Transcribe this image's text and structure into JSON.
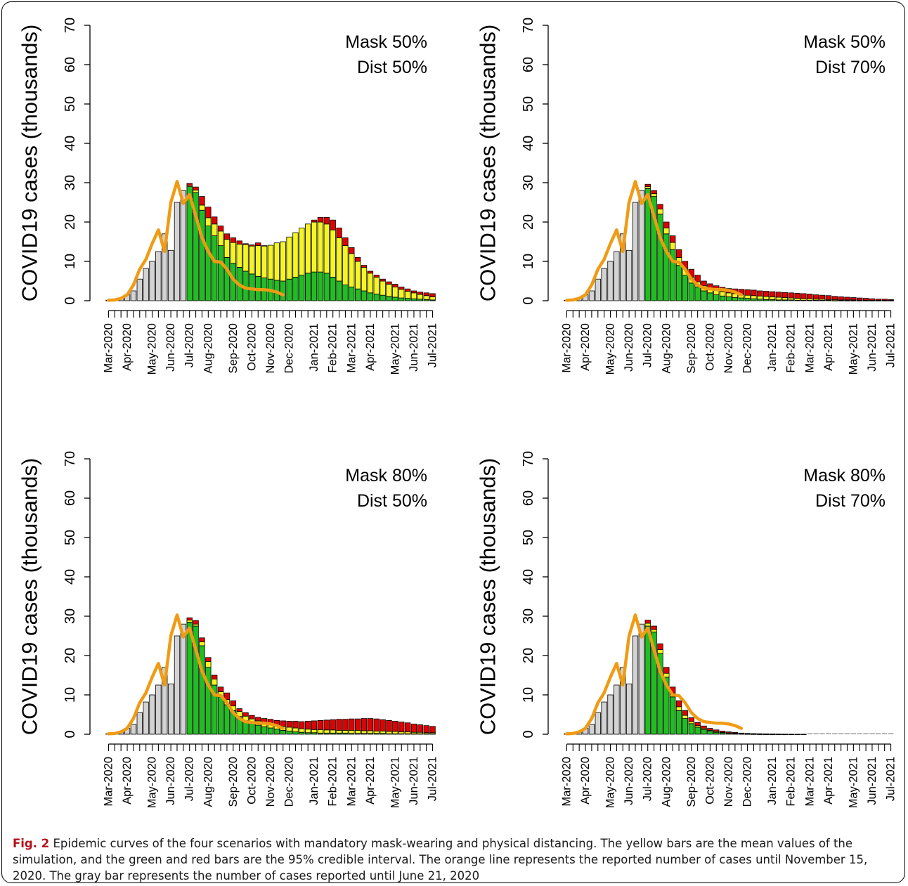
{
  "colors": {
    "gray": "#d3d3d3",
    "green": "#1fbf1f",
    "yellow": "#f5f523",
    "red": "#e00000",
    "orange": "#f09b14"
  },
  "caption": {
    "label": "Fig. 2",
    "text": " Epidemic curves of the four scenarios with mandatory mask-wearing and physical distancing. The yellow bars are the mean values of the simulation, and the green and red bars are the 95% credible interval. The orange line represents the reported number of cases until November 15, 2020. The gray bar represents the number of cases reported until June 21, 2020"
  },
  "chart_data": [
    {
      "type": "bar",
      "title": [
        "Mask 50%",
        "Dist 50%"
      ],
      "ylabel": "COVID19 cases (thousands)",
      "ylim": [
        0,
        70
      ],
      "yticks": [
        0,
        10,
        20,
        30,
        40,
        50,
        60,
        70
      ],
      "x_tick_labels": [
        "Mar-2020",
        "Apr-2020",
        "May-2020",
        "Jun-2020",
        "Jul-2020",
        "Aug-2020",
        "Sep-2020",
        "Oct-2020",
        "Nov-2020",
        "Dec-2020",
        "Jan-2021",
        "Feb-2021",
        "Mar-2021",
        "Apr-2021",
        "May-2021",
        "Jun-2021",
        "Jul-2021"
      ],
      "reported_gray": [
        0.1,
        0.2,
        0.6,
        1.5,
        2.5,
        5.5,
        8.2,
        10.0,
        12.5,
        17.0,
        12.8,
        25.0,
        28.0
      ],
      "sim_lower_green": [
        29.0,
        27.5,
        23.0,
        19.0,
        16.5,
        14.0,
        11.0,
        9.5,
        8.5,
        7.5,
        6.8,
        6.2,
        5.8,
        5.5,
        5.2,
        5.0,
        5.5,
        6.0,
        6.5,
        7.0,
        7.3,
        7.3,
        7.0,
        6.0,
        5.0,
        4.0,
        3.5,
        3.0,
        2.5,
        2.0,
        1.7,
        1.4,
        1.1,
        0.9,
        0.7,
        0.6,
        0.5,
        0.4,
        0.3,
        0.2
      ],
      "sim_mean_yellow": [
        29.3,
        28.1,
        24.3,
        21.1,
        19.5,
        17.7,
        15.6,
        14.8,
        14.4,
        14.3,
        13.9,
        14.0,
        13.9,
        14.1,
        14.7,
        15.0,
        16.2,
        17.3,
        18.5,
        19.5,
        20.0,
        20.0,
        19.5,
        18.0,
        16.0,
        14.0,
        12.0,
        10.0,
        8.5,
        7.0,
        6.0,
        5.0,
        4.2,
        3.5,
        2.9,
        2.4,
        2.0,
        1.6,
        1.3,
        1.0
      ],
      "sim_upper_red": [
        29.8,
        28.9,
        26.5,
        23.8,
        21.3,
        19.0,
        17.0,
        16.0,
        15.2,
        14.5,
        14.2,
        14.7,
        14.0,
        13.9,
        14.5,
        14.0,
        15.3,
        16.2,
        18.0,
        19.5,
        20.5,
        21.2,
        21.2,
        20.5,
        18.5,
        16.0,
        13.5,
        11.0,
        9.0,
        7.5,
        6.5,
        5.5,
        4.8,
        4.2,
        3.5,
        3.0,
        2.5,
        2.2,
        2.0,
        1.8
      ],
      "reported_line": [
        0.1,
        0.2,
        0.6,
        1.5,
        4.0,
        8.0,
        10.5,
        14.5,
        18.0,
        12.5,
        25.0,
        30.3,
        24.7,
        27.0,
        21.5,
        16.0,
        12.5,
        10.0,
        9.8,
        8.0,
        5.5,
        4.0,
        3.2,
        3.0,
        2.8,
        2.8,
        2.6,
        2.2,
        1.5
      ]
    },
    {
      "type": "bar",
      "title": [
        "Mask 50%",
        "Dist 70%"
      ],
      "ylabel": "COVID19 cases (thousands)",
      "ylim": [
        0,
        70
      ],
      "yticks": [
        0,
        10,
        20,
        30,
        40,
        50,
        60,
        70
      ],
      "x_tick_labels": [
        "Mar-2020",
        "Apr-2020",
        "May-2020",
        "Jun-2020",
        "Jul-2020",
        "Aug-2020",
        "Sep-2020",
        "Oct-2020",
        "Nov-2020",
        "Dec-2020",
        "Jan-2021",
        "Feb-2021",
        "Mar-2021",
        "Apr-2021",
        "May-2021",
        "Jun-2021",
        "Jul-2021"
      ],
      "reported_gray": [
        0.1,
        0.2,
        0.6,
        1.5,
        2.5,
        5.5,
        8.2,
        10.0,
        12.5,
        17.0,
        12.8,
        25.0,
        28.0
      ],
      "sim_lower_green": [
        28.5,
        26.5,
        22.0,
        17.0,
        13.0,
        9.0,
        6.5,
        4.5,
        3.5,
        2.5,
        2.0,
        1.5,
        1.2,
        1.0,
        0.8,
        0.7,
        0.6,
        0.5,
        0.4,
        0.3,
        0.3,
        0.2,
        0.2,
        0.2,
        0.1,
        0.1,
        0.1,
        0.1,
        0.1,
        0.1,
        0.05,
        0.05,
        0.05,
        0.05,
        0.05,
        0.05,
        0.05,
        0.05,
        0.05,
        0.05
      ],
      "sim_mean_yellow": [
        29.0,
        27.2,
        23.3,
        18.5,
        14.8,
        11.0,
        8.2,
        6.0,
        4.8,
        3.8,
        3.2,
        2.7,
        2.3,
        2.0,
        1.8,
        1.6,
        1.4,
        1.3,
        1.2,
        1.1,
        1.0,
        0.9,
        0.8,
        0.7,
        0.6,
        0.5,
        0.5,
        0.4,
        0.4,
        0.3,
        0.3,
        0.2,
        0.2,
        0.2,
        0.15,
        0.1,
        0.1,
        0.1,
        0.1,
        0.1
      ],
      "sim_upper_red": [
        29.6,
        28.0,
        24.5,
        20.0,
        16.5,
        13.0,
        10.0,
        8.0,
        6.5,
        5.0,
        4.3,
        3.8,
        3.4,
        3.1,
        3.0,
        2.9,
        2.8,
        2.7,
        2.5,
        2.4,
        2.3,
        2.2,
        2.1,
        2.0,
        1.9,
        1.8,
        1.7,
        1.5,
        1.4,
        1.3,
        1.1,
        1.0,
        0.9,
        0.8,
        0.7,
        0.6,
        0.5,
        0.4,
        0.4,
        0.3
      ],
      "reported_line": [
        0.1,
        0.2,
        0.6,
        1.5,
        4.0,
        8.0,
        10.5,
        14.5,
        18.0,
        12.5,
        25.0,
        30.3,
        24.7,
        27.0,
        21.5,
        16.0,
        12.5,
        10.0,
        9.8,
        8.0,
        5.5,
        4.0,
        3.2,
        3.0,
        2.8,
        2.8,
        2.6,
        2.2,
        1.5
      ]
    },
    {
      "type": "bar",
      "title": [
        "Mask 80%",
        "Dist 50%"
      ],
      "ylabel": "COVID19 cases (thousands)",
      "ylim": [
        0,
        70
      ],
      "yticks": [
        0,
        10,
        20,
        30,
        40,
        50,
        60,
        70
      ],
      "x_tick_labels": [
        "Mar-2020",
        "Apr-2020",
        "May-2020",
        "Jun-2020",
        "Jul-2020",
        "Aug-2020",
        "Sep-2020",
        "Oct-2020",
        "Nov-2020",
        "Dec-2020",
        "Jan-2021",
        "Feb-2021",
        "Mar-2021",
        "Apr-2021",
        "May-2021",
        "Jun-2021",
        "Jul-2021"
      ],
      "reported_gray": [
        0.1,
        0.2,
        0.6,
        1.5,
        2.5,
        5.5,
        8.2,
        10.0,
        12.5,
        17.0,
        12.8,
        25.0,
        28.0
      ],
      "sim_lower_green": [
        28.5,
        27.5,
        22.5,
        17.0,
        12.5,
        9.5,
        7.5,
        6.0,
        4.5,
        3.5,
        2.8,
        2.3,
        1.9,
        1.6,
        1.3,
        1.0,
        0.8,
        0.6,
        0.5,
        0.4,
        0.4,
        0.3,
        0.3,
        0.3,
        0.3,
        0.3,
        0.2,
        0.2,
        0.2,
        0.2,
        0.2,
        0.2,
        0.1,
        0.1,
        0.1,
        0.1,
        0.1,
        0.1,
        0.1,
        0.1
      ],
      "sim_mean_yellow": [
        29.0,
        28.0,
        23.5,
        18.5,
        14.0,
        10.8,
        8.8,
        7.2,
        5.8,
        4.6,
        3.9,
        3.4,
        3.0,
        2.6,
        2.3,
        2.0,
        1.8,
        1.6,
        1.4,
        1.3,
        1.2,
        1.2,
        1.1,
        1.1,
        1.0,
        1.0,
        1.0,
        1.0,
        0.9,
        0.9,
        0.8,
        0.8,
        0.7,
        0.7,
        0.6,
        0.6,
        0.5,
        0.5,
        0.4,
        0.4
      ],
      "sim_upper_red": [
        29.6,
        28.9,
        24.5,
        19.5,
        15.0,
        12.0,
        10.5,
        8.5,
        6.5,
        5.5,
        4.8,
        4.3,
        4.0,
        3.8,
        3.5,
        3.4,
        3.3,
        3.3,
        3.2,
        3.3,
        3.4,
        3.5,
        3.6,
        3.7,
        3.8,
        3.8,
        3.9,
        3.9,
        4.0,
        4.0,
        3.9,
        3.7,
        3.5,
        3.3,
        3.1,
        2.9,
        2.6,
        2.4,
        2.2,
        2.0
      ],
      "reported_line": [
        0.1,
        0.2,
        0.6,
        1.5,
        4.0,
        8.0,
        10.5,
        14.5,
        18.0,
        12.5,
        25.0,
        30.3,
        24.7,
        27.0,
        21.5,
        16.0,
        12.5,
        10.0,
        9.8,
        8.0,
        5.5,
        4.0,
        3.2,
        3.0,
        2.8,
        2.8,
        2.6,
        2.2,
        1.5
      ]
    },
    {
      "type": "bar",
      "title": [
        "Mask 80%",
        "Dist 70%"
      ],
      "ylabel": "COVID19 cases (thousands)",
      "ylim": [
        0,
        70
      ],
      "yticks": [
        0,
        10,
        20,
        30,
        40,
        50,
        60,
        70
      ],
      "x_tick_labels": [
        "Mar-2020",
        "Apr-2020",
        "May-2020",
        "Jun-2020",
        "Jul-2020",
        "Aug-2020",
        "Sep-2020",
        "Oct-2020",
        "Nov-2020",
        "Dec-2020",
        "Jan-2021",
        "Feb-2021",
        "Mar-2021",
        "Apr-2021",
        "May-2021",
        "Jun-2021",
        "Jul-2021"
      ],
      "reported_gray": [
        0.1,
        0.2,
        0.6,
        1.5,
        2.5,
        5.5,
        8.2,
        10.0,
        12.5,
        17.0,
        12.8,
        25.0,
        28.0
      ],
      "sim_lower_green": [
        27.5,
        26.0,
        20.5,
        14.5,
        9.5,
        6.0,
        4.0,
        2.7,
        1.8,
        1.2,
        0.8,
        0.5,
        0.35,
        0.25,
        0.15,
        0.1,
        0.07,
        0.05,
        0.03,
        0.02,
        0.01,
        0.01,
        0.01,
        0,
        0,
        0,
        0,
        0,
        0,
        0,
        0,
        0,
        0,
        0,
        0,
        0,
        0,
        0,
        0,
        0
      ],
      "sim_mean_yellow": [
        28.2,
        26.6,
        21.5,
        15.5,
        10.5,
        7.0,
        4.8,
        3.2,
        2.2,
        1.5,
        1.0,
        0.7,
        0.5,
        0.35,
        0.25,
        0.15,
        0.1,
        0.08,
        0.05,
        0.03,
        0.02,
        0.02,
        0.01,
        0.01,
        0,
        0,
        0,
        0,
        0,
        0,
        0,
        0,
        0,
        0,
        0,
        0,
        0,
        0,
        0,
        0
      ],
      "sim_upper_red": [
        29.0,
        27.5,
        23.0,
        17.0,
        12.0,
        8.5,
        6.0,
        4.2,
        3.0,
        2.1,
        1.5,
        1.1,
        0.8,
        0.6,
        0.45,
        0.3,
        0.22,
        0.16,
        0.12,
        0.08,
        0.06,
        0.04,
        0.03,
        0.02,
        0.01,
        0.01,
        0,
        0,
        0,
        0,
        0,
        0,
        0,
        0,
        0,
        0,
        0,
        0,
        0,
        0
      ],
      "reported_line": [
        0.1,
        0.2,
        0.6,
        1.5,
        4.0,
        8.0,
        10.5,
        14.5,
        18.0,
        12.5,
        25.0,
        30.3,
        24.7,
        27.0,
        21.5,
        16.0,
        12.5,
        10.0,
        9.8,
        8.0,
        5.5,
        4.0,
        3.2,
        3.0,
        2.8,
        2.8,
        2.6,
        2.2,
        1.5
      ]
    }
  ]
}
